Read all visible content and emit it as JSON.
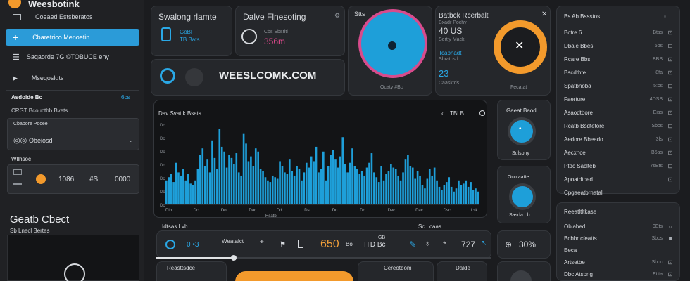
{
  "sidebar": {
    "app_title": "Weesbotink",
    "row_1": "Coeaed Estsberatos",
    "active_item": "Cbaretrico Menoetin",
    "row_3": "Saqaorde 7G ©TOBUCE ehy",
    "row_4": "Mseqosldts",
    "section_1": "Asdoide Bc",
    "section_1_action": "6cs",
    "section_2": "CRGT Bcouctbb Bvets",
    "card_1_title": "Cbapore Pocee",
    "card_1_item": "Obeiosd",
    "section_3": "Wllhsoc",
    "stat_1": "1086",
    "stat_2": "#S",
    "stat_3": "0000",
    "heading": "Geatb Cbect",
    "subheading": "Sb Lnecl Bertes"
  },
  "top_card_1": {
    "title": "Swalong rlamte",
    "line_1": "GoBl",
    "line_2": "TB Bats"
  },
  "top_card_2": {
    "title": "Dalve Flnesoting",
    "gear": "⚙",
    "sub": "Cbs Sbsritl",
    "value": "356m"
  },
  "brand_bar": {
    "logo_text": "WEESLCOMK.COM"
  },
  "dial_card": {
    "label": "Stts",
    "sub": "Ocaty #Bc"
  },
  "cnt_card": {
    "title": "Batbck Rcerbalt",
    "caption": "Bxadr Pochy",
    "value_1": "40 US",
    "value_1_sub": "Sertly Mack",
    "value_2_label": "Tcabhadt",
    "value_2_sub": "Sbratcsd",
    "value_3": "23",
    "value_3_sub": "Caasktds",
    "close_caption": "Fecatat"
  },
  "chart": {
    "title": "Dav Svat k Bsats",
    "indicator": "TBLB",
    "x_ticks": [
      "Dlb",
      "Dc",
      "Do",
      "Dac",
      "Dd",
      "Ds",
      "Do",
      "Do",
      "Dec",
      "Dac",
      "Dsc",
      "Lsk"
    ],
    "x_label": "Rsatb",
    "y_ticks": [
      "Dc",
      "Dc",
      "Do",
      "Do",
      "Dc",
      "Dc",
      "Dc"
    ]
  },
  "chart_data": {
    "type": "bar",
    "title": "Dav Svat k Bsats",
    "values": [
      30,
      34,
      38,
      28,
      52,
      40,
      36,
      44,
      30,
      38,
      26,
      24,
      30,
      44,
      62,
      70,
      48,
      56,
      40,
      80,
      58,
      44,
      94,
      72,
      66,
      46,
      62,
      58,
      50,
      64,
      40,
      36,
      88,
      76,
      54,
      60,
      48,
      70,
      66,
      44,
      42,
      34,
      30,
      28,
      36,
      34,
      32,
      54,
      48,
      40,
      38,
      56,
      42,
      36,
      48,
      44,
      30,
      40,
      52,
      46,
      60,
      54,
      72,
      40,
      44,
      66,
      30,
      48,
      62,
      68,
      56,
      46,
      60,
      84,
      50,
      40,
      52,
      70,
      48,
      44,
      38,
      42,
      36,
      46,
      52,
      64,
      40,
      34,
      28,
      48,
      30,
      38,
      42,
      50,
      46,
      44,
      36,
      30,
      40,
      56,
      62,
      48,
      46,
      32,
      42,
      36,
      24,
      20,
      32,
      44,
      36,
      46,
      30,
      22,
      18,
      24,
      28,
      34,
      22,
      16,
      20,
      30,
      24,
      26,
      30,
      22,
      28,
      18,
      20,
      16
    ],
    "ylim": [
      0,
      100
    ],
    "color": "#1e9fd9"
  },
  "right_dial_1": {
    "title": "Gaeat Baod",
    "sub": "Sulsbny"
  },
  "right_dial_2": {
    "title": "Ocotaatte",
    "sub": "Sasda Lb"
  },
  "stats_list": {
    "header": "Bs Ab Bssstos",
    "rows": [
      {
        "label": "Bctre 6",
        "value": "Btss",
        "icon": "⊡"
      },
      {
        "label": "Dbale Bbes",
        "value": "5bs",
        "icon": "⊡"
      },
      {
        "label": "Rcare Bbs",
        "value": "BBS",
        "icon": "⊡"
      },
      {
        "label": "Bscdthte",
        "value": "8fa",
        "icon": "⊡"
      },
      {
        "label": "Spatbnoba",
        "value": "5:cs",
        "icon": "⊡"
      },
      {
        "label": "Faerture",
        "value": "4DSS",
        "icon": "⊡"
      },
      {
        "label": "Asaodtbore",
        "value": "Eiss",
        "icon": "⊡"
      },
      {
        "label": "Rcatb Bsdtetore",
        "value": "Sbcs",
        "icon": "⊡"
      },
      {
        "label": "Aedore Bbeado",
        "value": "3fs",
        "icon": "⊡"
      },
      {
        "label": "Aecxnce",
        "value": "B5as",
        "icon": "⊡"
      },
      {
        "label": "Ptdc Saclteb",
        "value": "7sEts",
        "icon": "⊡"
      },
      {
        "label": "Apoatdtoed",
        "value": "",
        "icon": "⊡"
      },
      {
        "label": "Cpgaeatbrnatal",
        "value": "",
        "icon": ""
      }
    ]
  },
  "bottom_list": {
    "header": "Reeatltltkase",
    "rows": [
      {
        "label": "Oblabed",
        "value": "0Ets",
        "icon": "○"
      },
      {
        "label": "Bcbbr cfeatts",
        "value": "Sbcs",
        "icon": "■"
      },
      {
        "label": "Eeca",
        "value": "",
        "icon": ""
      },
      {
        "label": "Artsetbe",
        "value": "Sbcc",
        "icon": "⊡"
      },
      {
        "label": "Dbc Atsong",
        "value": "Etlta",
        "icon": "⊡"
      }
    ]
  },
  "bottom_strip": {
    "left_caption": "Idtsas Lvb",
    "right_caption": "Sc Lcaas",
    "slot_1_value": "0 •3",
    "slot_2_label": "Weatalct",
    "slot_3_value": "650",
    "slot_3_unit": "Bo",
    "slot_4_value": "ITD Bc",
    "slot_4_sub": "GB",
    "slot_5_value": "727",
    "slot_6_value": "30%"
  },
  "bottom_cards": {
    "card_1_title": "Reasttsdce",
    "card_2_title": "Cereotbom",
    "card_3_title": "Dalde"
  }
}
